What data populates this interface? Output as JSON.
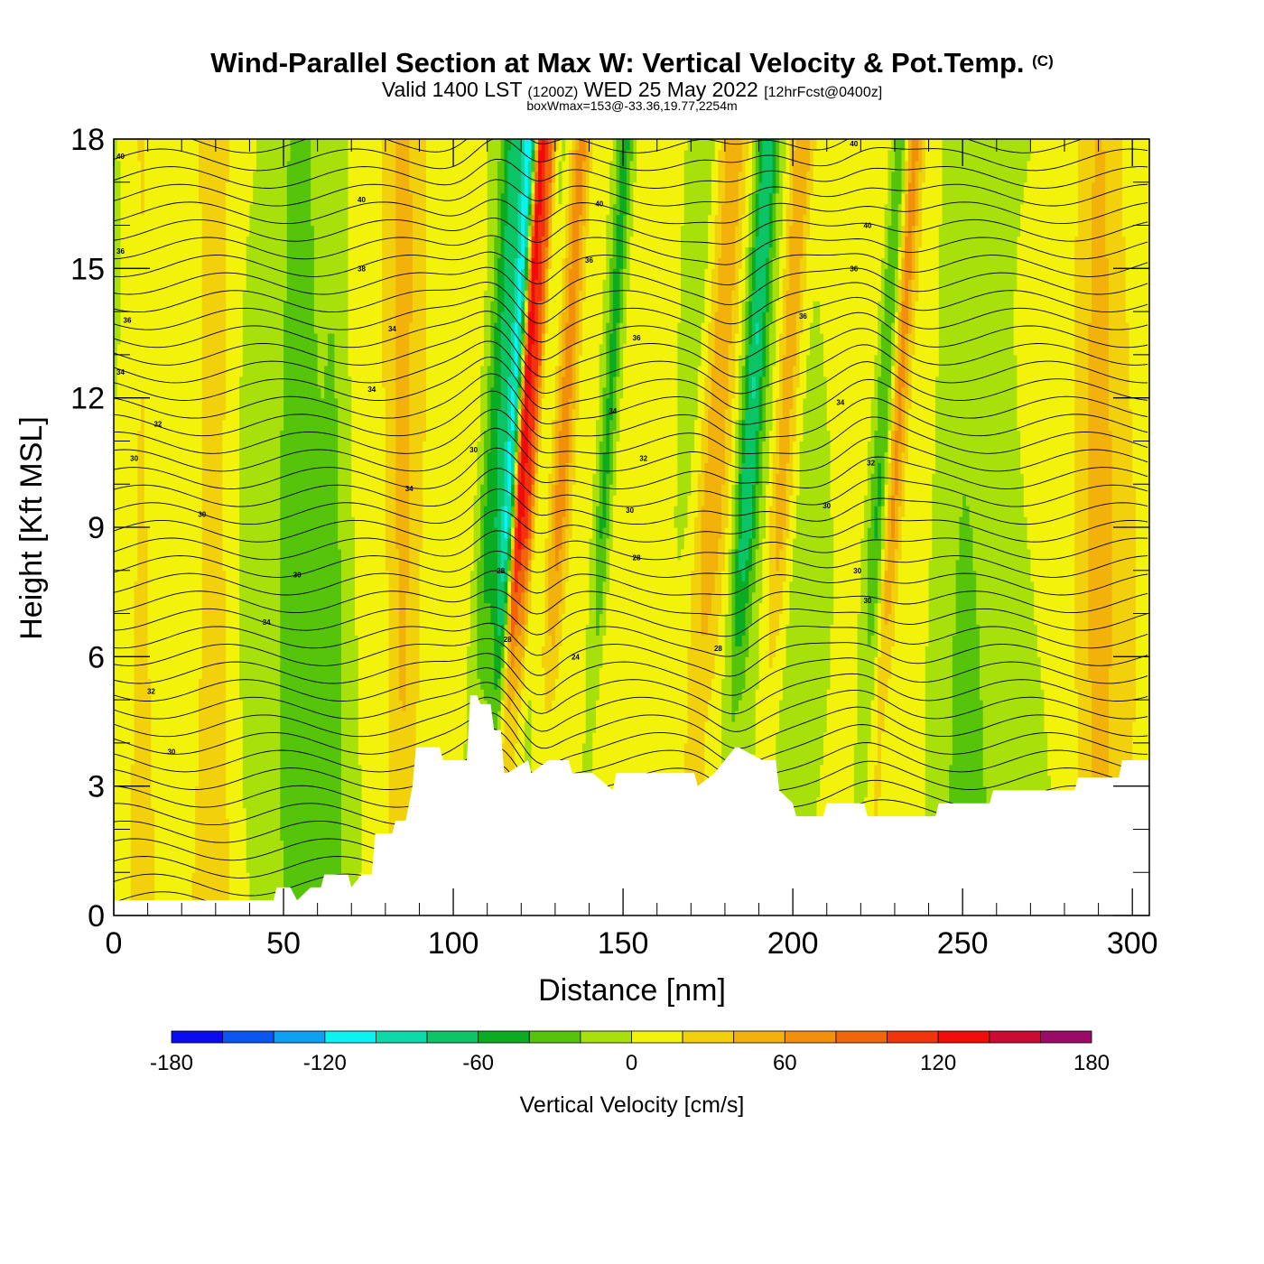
{
  "header": {
    "title_main": "Wind-Parallel Section at Max W: Vertical Velocity & Pot.Temp.",
    "title_copyright": "(C)",
    "valid_prefix": "Valid 1400 LST",
    "valid_zulu": "(1200Z)",
    "valid_date": "WED 25 May 2022",
    "forecast_info": "[12hrFcst@0400z]",
    "box_wmax": "boxWmax=153@-33.36,19.77,2254m"
  },
  "colors": {
    "scale": [
      "#0b0bf2",
      "#0b55f2",
      "#0ba0f2",
      "#0bf2f2",
      "#0bd9a8",
      "#0bc466",
      "#0bac22",
      "#55c40b",
      "#a8e00b",
      "#f2f20b",
      "#f2d00b",
      "#f2b20b",
      "#f2900b",
      "#f2660b",
      "#f2330b",
      "#f20b0b",
      "#cc0b33",
      "#990b66"
    ],
    "terrain": "#ffffff",
    "contour": "#000000"
  },
  "chart_data": {
    "type": "heatmap",
    "title": "Wind-Parallel Section at Max W: Vertical Velocity & Pot.Temp.",
    "xlabel": "Distance [nm]",
    "ylabel": "Height [Kft MSL]",
    "xlim": [
      0,
      305
    ],
    "ylim": [
      0,
      18
    ],
    "xticks": [
      0,
      50,
      100,
      150,
      200,
      250,
      300
    ],
    "yticks": [
      0,
      3,
      6,
      9,
      12,
      15,
      18
    ],
    "grid": false,
    "colorbar": {
      "label": "Vertical Velocity [cm/s]",
      "min": -180,
      "max": 180,
      "step": 20,
      "tick_values": [
        -180,
        -120,
        -60,
        0,
        60,
        120,
        180
      ]
    },
    "terrain_profile": {
      "x": [
        0,
        47,
        48,
        52,
        54,
        58,
        61,
        62,
        69,
        70,
        73,
        76,
        77,
        82,
        83,
        86,
        88,
        89,
        96,
        97,
        104,
        105,
        107,
        108,
        111,
        112,
        114,
        115,
        116,
        122,
        123,
        128,
        134,
        135,
        141,
        147,
        148,
        158,
        171,
        172,
        177,
        183,
        184,
        191,
        195,
        196,
        200,
        201,
        209,
        210,
        221,
        222,
        242,
        243,
        258,
        259,
        283,
        284,
        296,
        297,
        305
      ],
      "height_kft": [
        0.35,
        0.35,
        0.65,
        0.65,
        0.35,
        0.65,
        0.65,
        0.95,
        0.95,
        0.65,
        0.95,
        0.95,
        1.9,
        1.9,
        2.2,
        2.2,
        3.0,
        3.9,
        3.9,
        3.6,
        3.6,
        5.1,
        5.1,
        4.9,
        4.9,
        4.3,
        4.3,
        3.3,
        3.3,
        3.6,
        3.3,
        3.6,
        3.6,
        3.3,
        3.3,
        2.9,
        3.3,
        3.3,
        3.3,
        3.0,
        3.3,
        3.9,
        3.9,
        3.6,
        3.6,
        2.9,
        2.6,
        2.3,
        2.3,
        2.6,
        2.6,
        2.3,
        2.3,
        2.6,
        2.6,
        2.9,
        2.9,
        3.2,
        3.2,
        3.6,
        3.6
      ]
    },
    "vertical_velocity_features": [
      {
        "x": 108,
        "width": 3.5,
        "value": -60
      },
      {
        "x": 113,
        "width": 2.5,
        "value": -100
      },
      {
        "x": 116,
        "width": 1.8,
        "value": 150
      },
      {
        "x": 119,
        "width": 1.8,
        "value": 90
      },
      {
        "x": 128,
        "width": 3,
        "value": 70
      },
      {
        "x": 141,
        "width": 2.5,
        "value": -55
      },
      {
        "x": 173,
        "width": 5,
        "value": 60
      },
      {
        "x": 183,
        "width": 3,
        "value": -70
      },
      {
        "x": 193,
        "width": 3.5,
        "value": 60
      },
      {
        "x": 222,
        "width": 3,
        "value": -55
      },
      {
        "x": 226,
        "width": 2.5,
        "value": 60
      },
      {
        "x": 85,
        "width": 4,
        "value": 30
      },
      {
        "x": 290,
        "width": 6,
        "value": 30
      },
      {
        "x": 30,
        "width": 5,
        "value": 25
      },
      {
        "x": 8,
        "width": 3,
        "value": 15
      },
      {
        "x": 55,
        "width": 6,
        "value": -25
      },
      {
        "x": 65,
        "width": 4,
        "value": -20
      },
      {
        "x": 165,
        "width": 5,
        "value": -15
      },
      {
        "x": 250,
        "width": 8,
        "value": -20
      }
    ],
    "pot_temp_labels": [
      {
        "x": 2,
        "y": 17.6,
        "text": "40"
      },
      {
        "x": 73,
        "y": 16.6,
        "text": "40"
      },
      {
        "x": 143,
        "y": 16.5,
        "text": "40"
      },
      {
        "x": 218,
        "y": 17.9,
        "text": "40"
      },
      {
        "x": 222,
        "y": 16.0,
        "text": "40"
      },
      {
        "x": 2,
        "y": 15.4,
        "text": "36"
      },
      {
        "x": 73,
        "y": 15.0,
        "text": "38"
      },
      {
        "x": 140,
        "y": 15.2,
        "text": "36"
      },
      {
        "x": 218,
        "y": 15.0,
        "text": "36"
      },
      {
        "x": 4,
        "y": 13.8,
        "text": "36"
      },
      {
        "x": 82,
        "y": 13.6,
        "text": "34"
      },
      {
        "x": 154,
        "y": 13.4,
        "text": "36"
      },
      {
        "x": 203,
        "y": 13.9,
        "text": "36"
      },
      {
        "x": 2,
        "y": 12.6,
        "text": "34"
      },
      {
        "x": 76,
        "y": 12.2,
        "text": "34"
      },
      {
        "x": 147,
        "y": 11.7,
        "text": "34"
      },
      {
        "x": 214,
        "y": 11.9,
        "text": "34"
      },
      {
        "x": 13,
        "y": 11.4,
        "text": "32"
      },
      {
        "x": 106,
        "y": 10.8,
        "text": "30"
      },
      {
        "x": 6,
        "y": 10.6,
        "text": "30"
      },
      {
        "x": 156,
        "y": 10.6,
        "text": "32"
      },
      {
        "x": 223,
        "y": 10.5,
        "text": "32"
      },
      {
        "x": 87,
        "y": 9.9,
        "text": "34"
      },
      {
        "x": 152,
        "y": 9.4,
        "text": "30"
      },
      {
        "x": 210,
        "y": 9.5,
        "text": "30"
      },
      {
        "x": 26,
        "y": 9.3,
        "text": "30"
      },
      {
        "x": 154,
        "y": 8.3,
        "text": "28"
      },
      {
        "x": 114,
        "y": 8.0,
        "text": "28"
      },
      {
        "x": 219,
        "y": 8.0,
        "text": "30"
      },
      {
        "x": 54,
        "y": 7.9,
        "text": "30"
      },
      {
        "x": 222,
        "y": 7.3,
        "text": "30"
      },
      {
        "x": 45,
        "y": 6.8,
        "text": "34"
      },
      {
        "x": 116,
        "y": 6.4,
        "text": "28"
      },
      {
        "x": 178,
        "y": 6.2,
        "text": "28"
      },
      {
        "x": 136,
        "y": 6.0,
        "text": "24"
      },
      {
        "x": 11,
        "y": 5.2,
        "text": "32"
      },
      {
        "x": 17,
        "y": 3.8,
        "text": "30"
      }
    ]
  }
}
